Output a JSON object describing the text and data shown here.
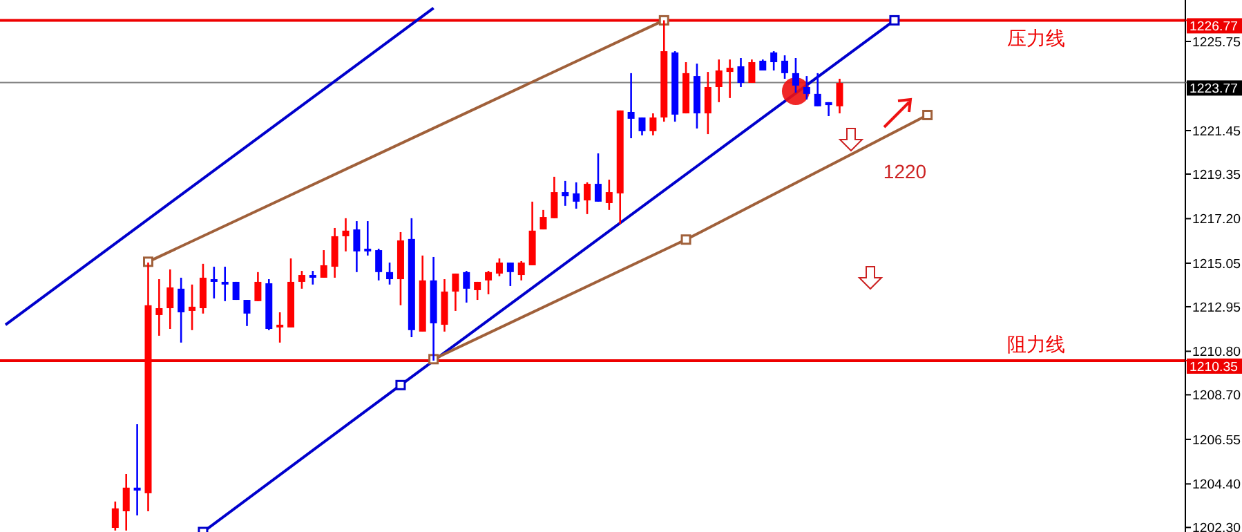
{
  "chart_data": {
    "type": "candlestick",
    "categories": [
      null,
      null,
      null,
      null,
      null,
      null,
      null,
      null,
      null,
      null,
      null,
      null,
      null,
      null,
      null,
      null,
      null,
      null,
      null,
      null,
      null,
      null,
      null,
      null,
      null,
      null,
      null,
      null,
      null,
      null,
      null,
      null,
      null,
      null,
      null,
      null,
      null,
      null,
      null,
      null,
      null,
      null,
      null,
      null,
      null,
      null,
      null,
      null,
      null,
      null,
      null,
      null,
      null,
      null,
      null,
      null,
      null,
      null,
      null,
      null,
      null,
      null,
      null,
      null,
      null,
      null,
      null,
      null,
      null,
      null,
      null,
      null,
      null,
      null,
      null,
      null,
      null,
      null,
      null,
      null,
      null,
      null,
      null,
      null,
      null,
      null,
      null,
      null,
      null,
      null,
      null,
      null,
      null,
      null,
      null,
      null,
      null,
      null,
      null,
      null,
      null,
      null,
      null,
      null,
      null,
      null,
      null,
      null
    ],
    "ohlc": [
      null,
      null,
      null,
      null,
      null,
      null,
      null,
      null,
      null,
      null,
      [
        1202.28,
        1203.55,
        1202.15,
        1203.22
      ],
      [
        1203.08,
        1204.88,
        1202.15,
        1204.22
      ],
      [
        1204.22,
        1207.28,
        1202.88,
        1204.08
      ],
      [
        1203.95,
        1215.08,
        1203.08,
        1213.02
      ],
      [
        1212.55,
        1214.28,
        1211.55,
        1212.88
      ],
      [
        1212.88,
        1214.75,
        1211.88,
        1213.88
      ],
      [
        1213.82,
        1214.35,
        1211.22,
        1212.68
      ],
      [
        1212.75,
        1214.02,
        1211.82,
        1212.95
      ],
      [
        1212.88,
        1215.02,
        1212.62,
        1214.35
      ],
      [
        1214.28,
        1214.88,
        1213.35,
        1214.15
      ],
      [
        1214.15,
        1214.88,
        1213.22,
        1214.02
      ],
      [
        1214.15,
        1214.15,
        1213.28,
        1213.28
      ],
      [
        1213.28,
        1213.28,
        1212.02,
        1212.62
      ],
      [
        1213.22,
        1214.62,
        1213.22,
        1214.15
      ],
      [
        1214.08,
        1214.28,
        1211.82,
        1211.88
      ],
      [
        1211.95,
        1212.68,
        1211.22,
        1212.08
      ],
      [
        1211.95,
        1215.28,
        1211.95,
        1214.15
      ],
      [
        1214.15,
        1214.68,
        1213.82,
        1214.48
      ],
      [
        1214.48,
        1214.68,
        1214.02,
        1214.35
      ],
      [
        1214.35,
        1215.68,
        1214.35,
        1214.95
      ],
      [
        1214.88,
        1216.75,
        1214.35,
        1216.35
      ],
      [
        1216.35,
        1217.22,
        1215.62,
        1216.62
      ],
      [
        1216.68,
        1217.08,
        1214.62,
        1215.62
      ],
      [
        1215.75,
        1217.08,
        1215.42,
        1215.62
      ],
      [
        1215.68,
        1215.75,
        1214.22,
        1214.62
      ],
      [
        1214.62,
        1215.08,
        1214.02,
        1214.28
      ],
      [
        1214.28,
        1216.55,
        1213.02,
        1216.15
      ],
      [
        1216.22,
        1217.22,
        1211.48,
        1211.82
      ],
      [
        1211.75,
        1215.42,
        1211.75,
        1214.22
      ],
      [
        1214.22,
        1215.35,
        1210.35,
        1212.15
      ],
      [
        1212.08,
        1214.28,
        1211.75,
        1213.68
      ],
      [
        1213.68,
        1214.55,
        1212.75,
        1214.55
      ],
      [
        1214.62,
        1214.68,
        1213.15,
        1213.82
      ],
      [
        1213.75,
        1214.15,
        1213.28,
        1214.15
      ],
      [
        1214.22,
        1214.68,
        1213.55,
        1214.62
      ],
      [
        1214.55,
        1215.28,
        1214.42,
        1215.08
      ],
      [
        1215.08,
        1215.08,
        1213.95,
        1214.62
      ],
      [
        1214.48,
        1215.15,
        1214.22,
        1215.08
      ],
      [
        1214.95,
        1218.02,
        1214.95,
        1216.62
      ],
      [
        1216.68,
        1217.62,
        1216.68,
        1217.28
      ],
      [
        1217.22,
        1219.22,
        1217.22,
        1218.48
      ],
      [
        1218.48,
        1219.02,
        1217.82,
        1218.28
      ],
      [
        1218.42,
        1218.95,
        1217.68,
        1218.02
      ],
      [
        1218.08,
        1218.95,
        1217.42,
        1218.88
      ],
      [
        1218.88,
        1220.35,
        1218.02,
        1218.02
      ],
      [
        1217.95,
        1219.08,
        1217.62,
        1218.48
      ],
      [
        1218.42,
        1222.42,
        1216.95,
        1222.42
      ],
      [
        1222.35,
        1224.22,
        1221.08,
        1222.02
      ],
      [
        1222.08,
        1222.08,
        1221.22,
        1221.42
      ],
      [
        1221.42,
        1222.28,
        1221.22,
        1222.08
      ],
      [
        1222.08,
        1226.77,
        1221.88,
        1225.28
      ],
      [
        1225.22,
        1225.28,
        1221.88,
        1222.22
      ],
      [
        1222.28,
        1224.75,
        1222.28,
        1224.22
      ],
      [
        1224.08,
        1224.68,
        1221.55,
        1222.28
      ],
      [
        1222.28,
        1224.28,
        1221.28,
        1223.55
      ],
      [
        1223.55,
        1224.88,
        1222.82,
        1224.35
      ],
      [
        1224.28,
        1224.88,
        1223.02,
        1224.48
      ],
      [
        1224.55,
        1224.95,
        1223.55,
        1223.75
      ],
      [
        1223.75,
        1224.88,
        1223.75,
        1224.75
      ],
      [
        1224.82,
        1224.88,
        1224.35,
        1224.35
      ],
      [
        1225.22,
        1225.28,
        1224.35,
        1224.75
      ],
      [
        1224.82,
        1225.08,
        1223.95,
        1224.22
      ],
      [
        1224.22,
        1224.95,
        1223.28,
        1223.62
      ],
      [
        1223.55,
        1224.08,
        1222.95,
        1223.22
      ],
      [
        1223.22,
        1224.22,
        1222.62,
        1222.62
      ],
      [
        1222.82,
        1222.82,
        1222.15,
        1222.68
      ],
      [
        1222.62,
        1223.95,
        1222.28,
        1223.75
      ],
      null,
      null,
      null,
      null,
      null,
      null,
      null,
      null,
      null,
      null,
      null,
      null,
      null,
      null,
      null,
      null,
      null,
      null,
      null,
      null,
      null,
      null,
      null,
      null,
      null,
      null,
      null,
      null,
      null,
      null,
      null
    ],
    "colors": [
      null,
      null,
      null,
      null,
      null,
      null,
      null,
      null,
      null,
      null,
      "#ff0000",
      "#ff0000",
      "#0000ff",
      "#ff0000",
      "#ff0000",
      "#ff0000",
      "#0000ff",
      "#ff0000",
      "#ff0000",
      "#0000ff",
      "#0000ff",
      "#0000ff",
      "#0000ff",
      "#ff0000",
      "#0000ff",
      "#ff0000",
      "#ff0000",
      "#ff0000",
      "#0000ff",
      "#ff0000",
      "#ff0000",
      "#ff0000",
      "#0000ff",
      "#0000ff",
      "#0000ff",
      "#0000ff",
      "#ff0000",
      "#0000ff",
      "#ff0000",
      "#0000ff",
      "#ff0000",
      "#ff0000",
      "#0000ff",
      "#ff0000",
      "#ff0000",
      "#ff0000",
      "#0000ff",
      "#ff0000",
      "#ff0000",
      "#ff0000",
      "#ff0000",
      "#0000ff",
      "#0000ff",
      "#ff0000",
      "#0000ff",
      "#ff0000",
      "#ff0000",
      "#0000ff",
      "#0000ff",
      "#ff0000",
      "#ff0000",
      "#0000ff",
      "#ff0000",
      "#0000ff",
      "#ff0000",
      "#ff0000",
      "#ff0000",
      "#0000ff",
      "#ff0000",
      "#0000ff",
      "#0000ff",
      "#0000ff",
      "#0000ff",
      "#0000ff",
      "#0000ff",
      "#0000ff",
      "#ff0000",
      null,
      null,
      null,
      null,
      null,
      null,
      null,
      null,
      null,
      null,
      null,
      null,
      null,
      null,
      null,
      null,
      null,
      null,
      null,
      null,
      null,
      null,
      null,
      null,
      null,
      null,
      null,
      null,
      null,
      null,
      null
    ],
    "series": [
      {
        "type": "line",
        "color": "#0000cc",
        "marker": "none",
        "values": [
          1212.08,
          null,
          null,
          null,
          null,
          null,
          null,
          null,
          null,
          null,
          null,
          null,
          null,
          null,
          null,
          null,
          null,
          null,
          null,
          null,
          null,
          null,
          null,
          null,
          null,
          null,
          null,
          null,
          null,
          null,
          null,
          null,
          null,
          null,
          null,
          null,
          null,
          null,
          null,
          1227.36,
          null,
          null,
          null,
          null,
          null,
          null,
          null,
          null,
          null,
          null,
          null,
          null,
          null,
          null,
          null,
          null,
          null,
          null,
          null,
          null,
          null,
          null,
          null,
          null,
          null,
          null,
          null,
          null,
          null,
          null,
          null,
          null,
          null,
          null,
          null,
          null,
          null,
          null,
          null,
          null,
          null,
          null,
          null,
          null,
          null,
          null,
          null,
          null,
          null,
          null,
          null,
          null,
          null,
          null,
          null,
          null,
          null,
          null,
          null,
          null,
          null,
          null,
          null,
          null,
          null,
          null,
          null,
          null
        ]
      },
      {
        "type": "line",
        "color": "#0000cc",
        "marker": "square",
        "values": [
          null,
          null,
          null,
          null,
          null,
          null,
          null,
          null,
          null,
          null,
          null,
          null,
          null,
          null,
          null,
          null,
          null,
          null,
          1202.08,
          null,
          null,
          null,
          null,
          null,
          null,
          null,
          null,
          null,
          null,
          null,
          null,
          null,
          null,
          null,
          null,
          null,
          1209.17,
          null,
          null,
          null,
          null,
          null,
          null,
          null,
          null,
          null,
          null,
          null,
          null,
          null,
          null,
          null,
          null,
          null,
          null,
          null,
          null,
          null,
          null,
          null,
          null,
          null,
          null,
          null,
          null,
          null,
          null,
          null,
          null,
          null,
          null,
          null,
          null,
          null,
          null,
          null,
          null,
          null,
          null,
          null,
          null,
          1226.77,
          null,
          null,
          null,
          null,
          null,
          null,
          null,
          null,
          null,
          null,
          null,
          null,
          null,
          null,
          null,
          null,
          null,
          null,
          null,
          null,
          null,
          null,
          null,
          null,
          null,
          null
        ]
      },
      {
        "type": "line",
        "color": "#a0603a",
        "marker": "square",
        "values": [
          null,
          null,
          null,
          null,
          null,
          null,
          null,
          null,
          null,
          null,
          null,
          null,
          null,
          1215.12,
          null,
          null,
          null,
          null,
          null,
          null,
          null,
          null,
          null,
          null,
          null,
          null,
          null,
          null,
          null,
          null,
          null,
          null,
          null,
          null,
          null,
          null,
          null,
          null,
          null,
          null,
          null,
          null,
          null,
          null,
          null,
          null,
          null,
          null,
          null,
          null,
          null,
          null,
          null,
          null,
          null,
          null,
          null,
          null,
          null,
          null,
          1226.77,
          null,
          null,
          null,
          null,
          null,
          null,
          null,
          null,
          null,
          null,
          null,
          null,
          null,
          null,
          null,
          null,
          null,
          null,
          null,
          null,
          null,
          null,
          null,
          null,
          null,
          null,
          null,
          null,
          null,
          null,
          null,
          null,
          null,
          null,
          null,
          null,
          null,
          null,
          null,
          null,
          null,
          null,
          null,
          null,
          null,
          null,
          null
        ]
      },
      {
        "type": "line",
        "color": "#a0603a",
        "marker": "square",
        "values": [
          null,
          null,
          null,
          null,
          null,
          null,
          null,
          null,
          null,
          null,
          null,
          null,
          null,
          null,
          null,
          null,
          null,
          null,
          null,
          null,
          null,
          null,
          null,
          null,
          null,
          null,
          null,
          null,
          null,
          null,
          null,
          null,
          null,
          null,
          null,
          null,
          null,
          null,
          null,
          1210.42,
          null,
          null,
          null,
          null,
          null,
          null,
          null,
          null,
          null,
          null,
          null,
          null,
          null,
          null,
          null,
          null,
          null,
          null,
          null,
          null,
          null,
          null,
          1216.19,
          null,
          null,
          null,
          null,
          null,
          null,
          null,
          null,
          null,
          null,
          null,
          null,
          null,
          null,
          null,
          null,
          null,
          null,
          null,
          null,
          null,
          1222.2,
          null,
          null,
          null,
          null,
          null,
          null,
          null,
          null,
          null,
          null,
          null,
          null,
          null,
          null,
          null,
          null,
          null,
          null,
          null,
          null,
          null,
          null,
          null
        ]
      }
    ],
    "ylim": [
      1202.08,
      1227.75
    ],
    "yticks": [
      {
        "value": 1226.77,
        "label": "1226.77"
      },
      1225.75,
      {
        "value": 1223.77,
        "label": "1223.77"
      },
      1221.45,
      1219.35,
      {
        "value": 1217.2,
        "label": "1217.20"
      },
      1215.05,
      1212.95,
      {
        "value": 1210.8,
        "label": "1210.80"
      },
      {
        "value": 1210.35,
        "label": "1210.35"
      },
      {
        "value": 1208.7,
        "label": "1208.70"
      },
      1206.55,
      {
        "value": 1204.4,
        "label": "1204.40"
      },
      {
        "value": 1202.3,
        "label": "1202.30"
      }
    ],
    "ref_lines": [
      {
        "axis": "y",
        "value": 1226.77,
        "label": "压力线",
        "color": "#ee0000"
      },
      {
        "axis": "y",
        "value": 1223.77,
        "label": null,
        "color": "#808080"
      },
      {
        "axis": "y",
        "value": 1210.35,
        "label": "阻力线",
        "color": "#ee0000"
      }
    ],
    "annotations": [
      "1220"
    ],
    "tick_labels": "y",
    "grid": false,
    "line_style": "solid"
  }
}
